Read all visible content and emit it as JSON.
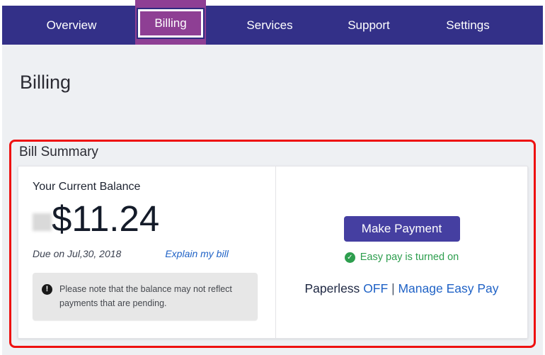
{
  "colors": {
    "nav_bg": "#333088",
    "active_tab_bg": "#8e3f94",
    "button_bg": "#453fa1",
    "link_blue": "#1f62c6",
    "success_green": "#2d9e4e",
    "annotation_red": "#ee1111"
  },
  "nav": {
    "active": "Billing",
    "items": [
      {
        "label": "Overview"
      },
      {
        "label": "Billing"
      },
      {
        "label": "Services"
      },
      {
        "label": "Support"
      },
      {
        "label": "Settings"
      }
    ]
  },
  "page": {
    "title": "Billing"
  },
  "bill_summary": {
    "section_title": "Bill Summary",
    "balance": {
      "label": "Your Current Balance",
      "amount": "$11.24",
      "due_text": "Due on Jul,30, 2018",
      "explain_link": "Explain my bill",
      "note_icon": "!",
      "note_text": "Please note that the balance may not reflect payments that are pending."
    },
    "payment": {
      "button_label": "Make Payment",
      "check_icon": "✓",
      "easypay_status": "Easy pay is turned on",
      "paperless_label": "Paperless",
      "paperless_state": "OFF",
      "separator": "|",
      "manage_link": "Manage Easy Pay"
    }
  }
}
